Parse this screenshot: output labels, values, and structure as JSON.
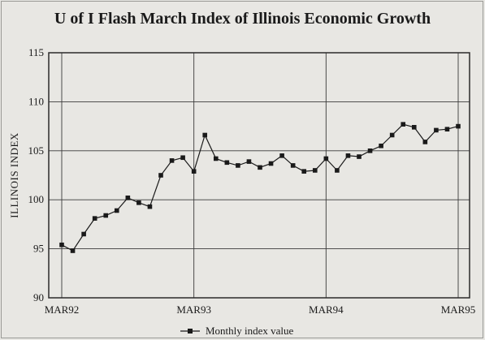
{
  "chart_data": {
    "type": "line",
    "title": "U of I Flash March Index of Illinois Economic Growth",
    "xlabel": "",
    "ylabel": "ILLINOIS INDEX",
    "ylim": [
      90,
      115
    ],
    "yticks": [
      90,
      95,
      100,
      105,
      110,
      115
    ],
    "xtick_labels": [
      "MAR92",
      "MAR93",
      "MAR94",
      "MAR95"
    ],
    "grid": true,
    "legend_position": "bottom-center",
    "series": [
      {
        "name": "Monthly index value",
        "color": "#1a1a1a",
        "x": [
          "Mar-92",
          "Apr-92",
          "May-92",
          "Jun-92",
          "Jul-92",
          "Aug-92",
          "Sep-92",
          "Oct-92",
          "Nov-92",
          "Dec-92",
          "Jan-93",
          "Feb-93",
          "Mar-93",
          "Apr-93",
          "May-93",
          "Jun-93",
          "Jul-93",
          "Aug-93",
          "Sep-93",
          "Oct-93",
          "Nov-93",
          "Dec-93",
          "Jan-94",
          "Feb-94",
          "Mar-94",
          "Apr-94",
          "May-94",
          "Jun-94",
          "Jul-94",
          "Aug-94",
          "Sep-94",
          "Oct-94",
          "Nov-94",
          "Dec-94",
          "Jan-95",
          "Feb-95",
          "Mar-95"
        ],
        "values": [
          95.4,
          94.8,
          96.5,
          98.1,
          98.4,
          98.9,
          100.2,
          99.7,
          99.3,
          102.5,
          104.0,
          104.3,
          102.9,
          106.6,
          104.2,
          103.8,
          103.5,
          103.9,
          103.3,
          103.7,
          104.5,
          103.5,
          102.9,
          103.0,
          104.2,
          103.0,
          104.5,
          104.4,
          105.0,
          105.5,
          106.6,
          107.7,
          107.4,
          105.9,
          107.1,
          107.2,
          107.5
        ]
      }
    ]
  }
}
